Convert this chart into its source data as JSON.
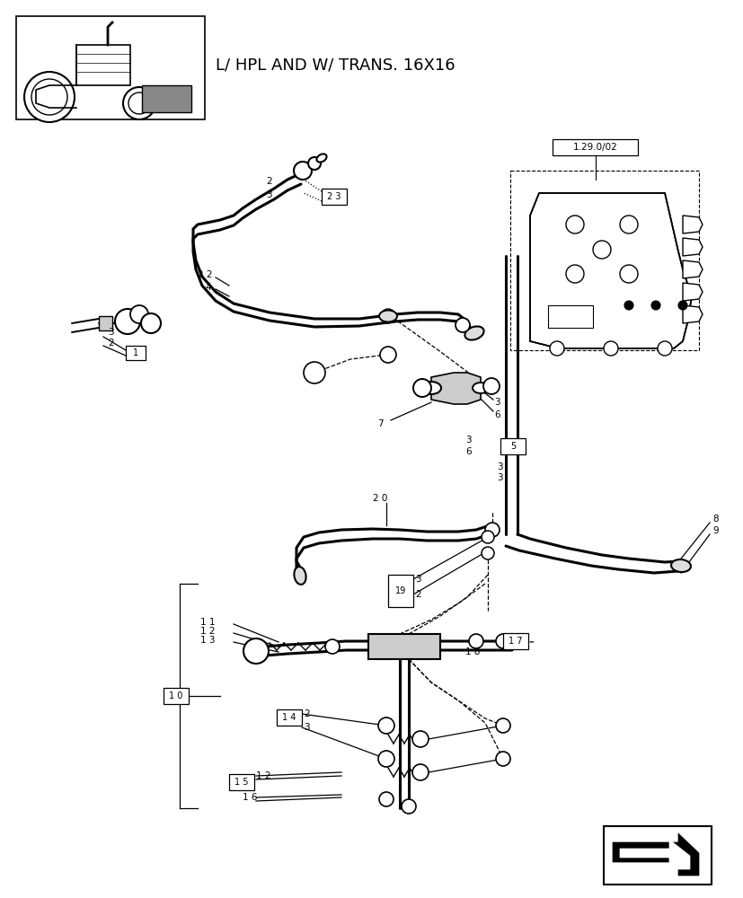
{
  "title_text": "L/ HPL AND W/ TRANS. 16X16",
  "bg_color": "#ffffff",
  "line_color": "#000000",
  "ref_box_label": "1.29.0/02",
  "figw": 8.28,
  "figh": 10.0,
  "dpi": 100
}
